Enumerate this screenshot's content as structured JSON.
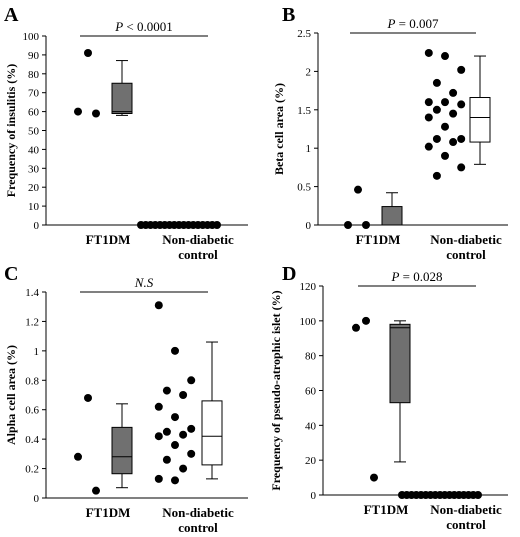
{
  "figure": {
    "panel_count": 4
  },
  "chart_data": [
    {
      "panel_label": "A",
      "type": "scatter",
      "subtype": "dot-and-box",
      "ylabel": "Frequency of insulitis (%)",
      "ylim": [
        0,
        100
      ],
      "yticks": [
        0,
        10,
        20,
        30,
        40,
        50,
        60,
        70,
        80,
        90,
        100
      ],
      "ytick_labels": [
        "0",
        "10",
        "20",
        "30",
        "40",
        "50",
        "60",
        "70",
        "80",
        "90",
        "100"
      ],
      "categories": [
        {
          "line1": "FT1DM",
          "line2": ""
        },
        {
          "line1": "Non-diabetic",
          "line2": "control"
        }
      ],
      "stat": {
        "prefix": "P",
        "text": " < 0.0001",
        "italic_text": false,
        "y": 100
      },
      "points": [
        [
          91,
          60,
          59
        ],
        [
          0,
          0,
          0,
          0,
          0,
          0,
          0,
          0,
          0,
          0,
          0,
          0,
          0,
          0,
          0,
          0,
          0
        ]
      ],
      "boxes": [
        {
          "min": 58,
          "q1": 59,
          "median": 60,
          "q3": 75,
          "max": 87,
          "fill": "#707070"
        },
        null
      ]
    },
    {
      "panel_label": "B",
      "type": "scatter",
      "subtype": "dot-and-box",
      "ylabel": "Beta cell area (%)",
      "ylim": [
        0,
        2.5
      ],
      "yticks": [
        0,
        0.5,
        1,
        1.5,
        2,
        2.5
      ],
      "ytick_labels": [
        "0",
        "0.5",
        "1",
        "1.5",
        "2",
        "2.5"
      ],
      "categories": [
        {
          "line1": "FT1DM",
          "line2": ""
        },
        {
          "line1": "Non-diabetic",
          "line2": "control"
        }
      ],
      "stat": {
        "prefix": "P",
        "text": " = 0.007",
        "italic_text": false,
        "y": 2.5
      },
      "points": [
        [
          0.46,
          0.0,
          0.0
        ],
        [
          2.24,
          2.2,
          2.02,
          1.85,
          1.72,
          1.6,
          1.6,
          1.57,
          1.5,
          1.45,
          1.4,
          1.28,
          1.12,
          1.12,
          1.08,
          1.02,
          0.9,
          0.75,
          0.64
        ]
      ],
      "boxes": [
        {
          "min": 0.0,
          "q1": 0.0,
          "median": 0.0,
          "q3": 0.24,
          "max": 0.42,
          "fill": "#707070"
        },
        {
          "min": 0.79,
          "q1": 1.08,
          "median": 1.4,
          "q3": 1.66,
          "max": 2.2,
          "fill": "#ffffff"
        }
      ]
    },
    {
      "panel_label": "C",
      "type": "scatter",
      "subtype": "dot-and-box",
      "ylabel": "Alpha cell area (%)",
      "ylim": [
        0,
        1.4
      ],
      "yticks": [
        0,
        0.2,
        0.4,
        0.6,
        0.8,
        1,
        1.2,
        1.4
      ],
      "ytick_labels": [
        "0",
        "0.2",
        "0.4",
        "0.6",
        "0.8",
        "1",
        "1.2",
        "1.4"
      ],
      "categories": [
        {
          "line1": "FT1DM",
          "line2": ""
        },
        {
          "line1": "Non-diabetic",
          "line2": "control"
        }
      ],
      "stat": {
        "prefix": "",
        "text": "N.S",
        "italic_text": true,
        "y": 1.4
      },
      "points": [
        [
          0.68,
          0.28,
          0.05
        ],
        [
          1.31,
          1.0,
          0.8,
          0.73,
          0.7,
          0.62,
          0.55,
          0.47,
          0.45,
          0.43,
          0.42,
          0.36,
          0.3,
          0.26,
          0.2,
          0.13,
          0.12
        ]
      ],
      "boxes": [
        {
          "min": 0.07,
          "q1": 0.165,
          "median": 0.28,
          "q3": 0.48,
          "max": 0.64,
          "fill": "#707070"
        },
        {
          "min": 0.13,
          "q1": 0.225,
          "median": 0.42,
          "q3": 0.66,
          "max": 1.06,
          "fill": "#ffffff"
        }
      ]
    },
    {
      "panel_label": "D",
      "type": "scatter",
      "subtype": "dot-and-box",
      "ylabel": "Frequency of pseudo-atrophic islet (%)",
      "ylim": [
        0,
        120
      ],
      "yticks": [
        0,
        20,
        40,
        60,
        80,
        100,
        120
      ],
      "ytick_labels": [
        "0",
        "20",
        "40",
        "60",
        "80",
        "100",
        "120"
      ],
      "categories": [
        {
          "line1": "FT1DM",
          "line2": ""
        },
        {
          "line1": "Non-diabetic",
          "line2": "control"
        }
      ],
      "stat": {
        "prefix": "P",
        "text": " = 0.028",
        "italic_text": false,
        "y": 120
      },
      "points": [
        [
          100,
          96,
          10
        ],
        [
          0,
          0,
          0,
          0,
          0,
          0,
          0,
          0,
          0,
          0,
          0,
          0,
          0,
          0,
          0,
          0,
          0
        ]
      ],
      "boxes": [
        {
          "min": 19,
          "q1": 53,
          "median": 96,
          "q3": 98,
          "max": 100,
          "fill": "#707070"
        },
        null
      ]
    }
  ]
}
